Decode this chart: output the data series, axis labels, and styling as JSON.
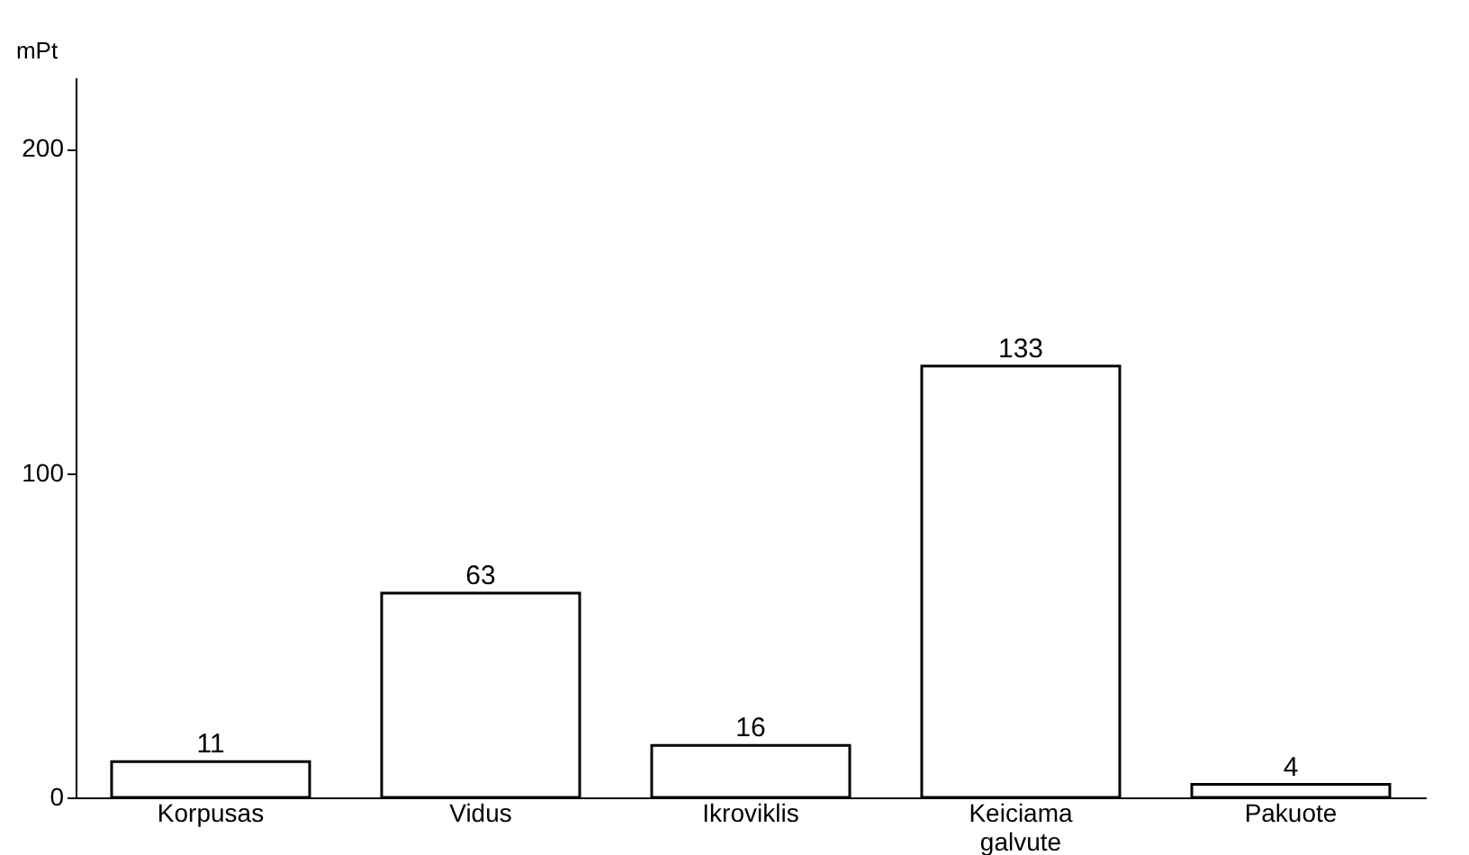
{
  "chart_data": {
    "type": "bar",
    "ylabel": "mPt",
    "categories": [
      "Korpusas",
      "Vidus",
      "Ikroviklis",
      "Keiciama galvute",
      "Pakuote"
    ],
    "values": [
      11,
      63,
      16,
      133,
      4
    ],
    "color": "#ffffff",
    "ylim": [
      0,
      222
    ],
    "yticks": [
      0,
      100,
      200
    ],
    "grid": false,
    "data_labels": true
  }
}
